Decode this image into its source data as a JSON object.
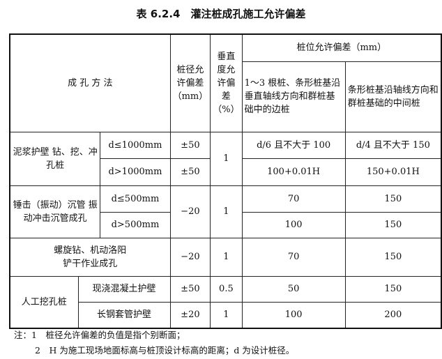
{
  "title": "表 6.2.4　灌注桩成孔施工允许偏差",
  "header": {
    "method": "成 孔 方 法",
    "diameter": "桩径允许偏差（mm）",
    "vertical": "垂直度允许偏差（%）",
    "position": "桩位允许偏差（mm）",
    "pos_edge": "1～3 根桩、条形桩基沿垂直轴线方向和群桩基础中的边桩",
    "pos_middle": "条形桩基沿轴线方向和群桩基础的中间桩"
  },
  "rows": [
    {
      "method": "泥浆护壁 钻、挖、冲孔桩",
      "sub": [
        {
          "cond": "d≤1000mm",
          "diameter": "±50",
          "edge": "d/6 且不大于 100",
          "middle": "d/4 且不大于 150"
        },
        {
          "cond": "d>1000mm",
          "diameter": "±50",
          "edge": "100+0.01H",
          "middle": "150+0.01H"
        }
      ],
      "vertical": "1"
    },
    {
      "method": "锤击（振动）沉管 振动冲击沉管成孔",
      "diameter": "−20",
      "vertical": "1",
      "sub": [
        {
          "cond": "d≤500mm",
          "edge": "70",
          "middle": "150"
        },
        {
          "cond": "d>500mm",
          "edge": "100",
          "middle": "150"
        }
      ]
    },
    {
      "method": "螺旋钻、机动洛阳铲干作业成孔",
      "diameter": "−20",
      "vertical": "1",
      "edge": "70",
      "middle": "150"
    },
    {
      "method": "人工挖孔桩",
      "sub": [
        {
          "cond": "现浇混凝土护壁",
          "diameter": "±50",
          "vertical": "0.5",
          "edge": "50",
          "middle": "150"
        },
        {
          "cond": "长钢套管护壁",
          "diameter": "±20",
          "vertical": "1",
          "edge": "100",
          "middle": "200"
        }
      ]
    }
  ],
  "notes": [
    "注：1　桩径允许偏差的负值是指个别断面；",
    "2　H 为施工现场地面标高与桩顶设计标高的距离；d 为设计桩径。"
  ]
}
